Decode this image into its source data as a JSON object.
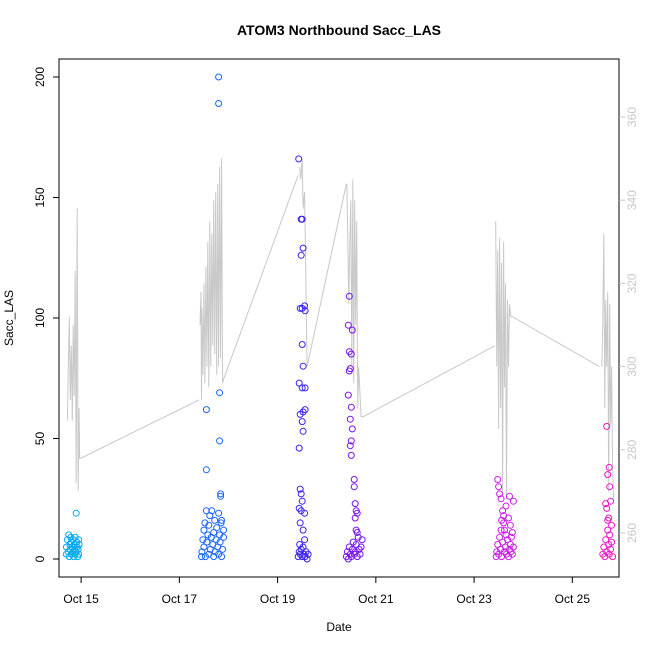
{
  "chart_data": {
    "type": "scatter",
    "title": "ATOM3 Northbound Sacc_LAS",
    "xlabel": "Date",
    "ylabel": "Sacc_LAS",
    "x_unit": "day of October",
    "xlim": [
      14.55,
      25.95
    ],
    "ylim": [
      -5,
      205
    ],
    "y2lim": [
      252,
      366
    ],
    "x_ticks": [
      {
        "value": 15,
        "label": "Oct 15"
      },
      {
        "value": 17,
        "label": "Oct 17"
      },
      {
        "value": 19,
        "label": "Oct 19"
      },
      {
        "value": 21,
        "label": "Oct 21"
      },
      {
        "value": 23,
        "label": "Oct 23"
      },
      {
        "value": 25,
        "label": "Oct 25"
      }
    ],
    "y_ticks": [
      0,
      50,
      100,
      150,
      200
    ],
    "y2_ticks": [
      260,
      280,
      300,
      320,
      340,
      360
    ],
    "grid": false,
    "legend": "none",
    "colors": {
      "line": "#c8c8c8",
      "axis": "#000000",
      "right_axis": "#c8c8c8",
      "group_colors": [
        "#00a8f0",
        "#1a66ff",
        "#3a22f2",
        "#7a14f0",
        "#c81ee6",
        "#f014c8"
      ]
    },
    "series": [
      {
        "color_index": 0,
        "points": [
          [
            14.7,
            2
          ],
          [
            14.7,
            5
          ],
          [
            14.72,
            8
          ],
          [
            14.74,
            3
          ],
          [
            14.75,
            10
          ],
          [
            14.76,
            1
          ],
          [
            14.77,
            6
          ],
          [
            14.78,
            4
          ],
          [
            14.79,
            9
          ],
          [
            14.8,
            2
          ],
          [
            14.8,
            7
          ],
          [
            14.82,
            5
          ],
          [
            14.83,
            3
          ],
          [
            14.84,
            8
          ],
          [
            14.85,
            1
          ],
          [
            14.86,
            6
          ],
          [
            14.87,
            4
          ],
          [
            14.88,
            2
          ],
          [
            14.88,
            9
          ],
          [
            14.9,
            3
          ],
          [
            14.9,
            19
          ],
          [
            14.91,
            7
          ],
          [
            14.92,
            5
          ],
          [
            14.93,
            1
          ],
          [
            14.94,
            4
          ],
          [
            14.95,
            2
          ],
          [
            14.95,
            8
          ],
          [
            14.96,
            6
          ]
        ]
      },
      {
        "color_index": 1,
        "points": [
          [
            17.45,
            1
          ],
          [
            17.46,
            3
          ],
          [
            17.48,
            8
          ],
          [
            17.5,
            12
          ],
          [
            17.5,
            5
          ],
          [
            17.52,
            15
          ],
          [
            17.53,
            1
          ],
          [
            17.55,
            20
          ],
          [
            17.56,
            7
          ],
          [
            17.58,
            10
          ],
          [
            17.6,
            2
          ],
          [
            17.6,
            14
          ],
          [
            17.62,
            18
          ],
          [
            17.63,
            4
          ],
          [
            17.65,
            9
          ],
          [
            17.66,
            20
          ],
          [
            17.68,
            6
          ],
          [
            17.7,
            11
          ],
          [
            17.7,
            1
          ],
          [
            17.72,
            16
          ],
          [
            17.73,
            3
          ],
          [
            17.75,
            8
          ],
          [
            17.76,
            13
          ],
          [
            17.78,
            5
          ],
          [
            17.8,
            19
          ],
          [
            17.8,
            2
          ],
          [
            17.82,
            10
          ],
          [
            17.83,
            7
          ],
          [
            17.85,
            15
          ],
          [
            17.86,
            1
          ],
          [
            17.88,
            4
          ],
          [
            17.9,
            12
          ],
          [
            17.9,
            9
          ],
          [
            17.55,
            37
          ],
          [
            17.55,
            62
          ],
          [
            17.8,
            200
          ],
          [
            17.8,
            189
          ],
          [
            17.82,
            69
          ],
          [
            17.82,
            49
          ],
          [
            17.84,
            26
          ],
          [
            17.84,
            27
          ],
          [
            17.86,
            16
          ]
        ]
      },
      {
        "color_index": 2,
        "points": [
          [
            19.42,
            1
          ],
          [
            19.44,
            3
          ],
          [
            19.45,
            6
          ],
          [
            19.46,
            2
          ],
          [
            19.48,
            4
          ],
          [
            19.5,
            1
          ],
          [
            19.52,
            5
          ],
          [
            19.54,
            2
          ],
          [
            19.55,
            8
          ],
          [
            19.56,
            1
          ],
          [
            19.58,
            3
          ],
          [
            19.6,
            0
          ],
          [
            19.62,
            2
          ],
          [
            19.43,
            166
          ],
          [
            19.48,
            141
          ],
          [
            19.5,
            141
          ],
          [
            19.48,
            126
          ],
          [
            19.52,
            129
          ],
          [
            19.5,
            104
          ],
          [
            19.46,
            104
          ],
          [
            19.55,
            105
          ],
          [
            19.56,
            103
          ],
          [
            19.5,
            89
          ],
          [
            19.52,
            80
          ],
          [
            19.44,
            73
          ],
          [
            19.5,
            71
          ],
          [
            19.56,
            71
          ],
          [
            19.56,
            62
          ],
          [
            19.52,
            61
          ],
          [
            19.46,
            60
          ],
          [
            19.5,
            57
          ],
          [
            19.52,
            53
          ],
          [
            19.44,
            46
          ],
          [
            19.46,
            29
          ],
          [
            19.48,
            27
          ],
          [
            19.5,
            24
          ],
          [
            19.44,
            21
          ],
          [
            19.48,
            20
          ],
          [
            19.46,
            15
          ],
          [
            19.52,
            12
          ],
          [
            19.55,
            19
          ]
        ]
      },
      {
        "color_index": 3,
        "points": [
          [
            20.4,
            1
          ],
          [
            20.42,
            3
          ],
          [
            20.44,
            0
          ],
          [
            20.46,
            5
          ],
          [
            20.48,
            2
          ],
          [
            20.5,
            1
          ],
          [
            20.52,
            4
          ],
          [
            20.54,
            7
          ],
          [
            20.56,
            2
          ],
          [
            20.58,
            3
          ],
          [
            20.6,
            6
          ],
          [
            20.62,
            1
          ],
          [
            20.64,
            9
          ],
          [
            20.66,
            4
          ],
          [
            20.68,
            2
          ],
          [
            20.7,
            5
          ],
          [
            20.72,
            8
          ],
          [
            20.46,
            109
          ],
          [
            20.44,
            97
          ],
          [
            20.52,
            95
          ],
          [
            20.46,
            86
          ],
          [
            20.5,
            85
          ],
          [
            20.48,
            79
          ],
          [
            20.46,
            78
          ],
          [
            20.44,
            68
          ],
          [
            20.5,
            63
          ],
          [
            20.48,
            58
          ],
          [
            20.52,
            54
          ],
          [
            20.5,
            49
          ],
          [
            20.48,
            47
          ],
          [
            20.5,
            43
          ],
          [
            20.56,
            33
          ],
          [
            20.56,
            30
          ],
          [
            20.58,
            23
          ],
          [
            20.6,
            20
          ],
          [
            20.62,
            19
          ],
          [
            20.58,
            17
          ],
          [
            20.6,
            12
          ],
          [
            20.62,
            11
          ]
        ]
      },
      {
        "color_index": 4,
        "points": [
          [
            23.45,
            1
          ],
          [
            23.46,
            3
          ],
          [
            23.48,
            6
          ],
          [
            23.5,
            2
          ],
          [
            23.52,
            9
          ],
          [
            23.54,
            4
          ],
          [
            23.55,
            12
          ],
          [
            23.56,
            1
          ],
          [
            23.58,
            7
          ],
          [
            23.6,
            15
          ],
          [
            23.62,
            3
          ],
          [
            23.64,
            5
          ],
          [
            23.65,
            10
          ],
          [
            23.66,
            2
          ],
          [
            23.68,
            8
          ],
          [
            23.7,
            1
          ],
          [
            23.72,
            4
          ],
          [
            23.74,
            6
          ],
          [
            23.75,
            3
          ],
          [
            23.76,
            9
          ],
          [
            23.78,
            2
          ],
          [
            23.8,
            5
          ],
          [
            23.48,
            33
          ],
          [
            23.5,
            30
          ],
          [
            23.52,
            27
          ],
          [
            23.55,
            25
          ],
          [
            23.58,
            20
          ],
          [
            23.6,
            18
          ],
          [
            23.65,
            22
          ],
          [
            23.7,
            17
          ],
          [
            23.72,
            26
          ],
          [
            23.74,
            14
          ],
          [
            23.8,
            24
          ],
          [
            23.62,
            12
          ],
          [
            23.56,
            16
          ],
          [
            23.78,
            11
          ]
        ]
      },
      {
        "color_index": 5,
        "points": [
          [
            25.62,
            2
          ],
          [
            25.64,
            5
          ],
          [
            25.66,
            1
          ],
          [
            25.68,
            8
          ],
          [
            25.7,
            3
          ],
          [
            25.72,
            12
          ],
          [
            25.74,
            6
          ],
          [
            25.75,
            2
          ],
          [
            25.76,
            10
          ],
          [
            25.78,
            4
          ],
          [
            25.8,
            7
          ],
          [
            25.82,
            1
          ],
          [
            25.7,
            55
          ],
          [
            25.75,
            38
          ],
          [
            25.72,
            35
          ],
          [
            25.68,
            23
          ],
          [
            25.76,
            30
          ],
          [
            25.78,
            24
          ],
          [
            25.7,
            21
          ],
          [
            25.74,
            17
          ],
          [
            25.8,
            14
          ],
          [
            25.72,
            16
          ]
        ]
      }
    ],
    "line_segments": [
      [
        [
          14.72,
          287
        ],
        [
          14.74,
          300
        ],
        [
          14.76,
          312
        ],
        [
          14.78,
          292
        ],
        [
          14.8,
          305
        ],
        [
          14.82,
          287
        ],
        [
          14.84,
          310
        ],
        [
          14.86,
          293
        ],
        [
          14.88,
          323
        ],
        [
          14.9,
          272
        ],
        [
          14.92,
          338
        ],
        [
          14.94,
          270
        ],
        [
          14.96,
          290
        ],
        [
          14.97,
          278
        ],
        [
          15.0,
          278
        ],
        [
          17.4,
          292
        ]
      ],
      [
        [
          17.42,
          310
        ],
        [
          17.44,
          318
        ],
        [
          17.45,
          292
        ],
        [
          17.46,
          314
        ],
        [
          17.48,
          298
        ],
        [
          17.5,
          320
        ],
        [
          17.52,
          296
        ],
        [
          17.54,
          324
        ],
        [
          17.56,
          300
        ],
        [
          17.58,
          330
        ],
        [
          17.6,
          295
        ],
        [
          17.62,
          335
        ],
        [
          17.64,
          300
        ],
        [
          17.66,
          332
        ],
        [
          17.68,
          305
        ],
        [
          17.7,
          340
        ],
        [
          17.72,
          303
        ],
        [
          17.74,
          342
        ],
        [
          17.76,
          298
        ],
        [
          17.78,
          344
        ],
        [
          17.8,
          300
        ],
        [
          17.82,
          348
        ],
        [
          17.84,
          302
        ],
        [
          17.86,
          350
        ],
        [
          17.88,
          296
        ],
        [
          17.9,
          297
        ],
        [
          19.42,
          346
        ]
      ],
      [
        [
          19.45,
          348
        ],
        [
          19.47,
          345
        ],
        [
          19.5,
          350
        ],
        [
          19.52,
          338
        ],
        [
          19.55,
          342
        ],
        [
          19.6,
          300
        ],
        [
          20.4,
          344
        ]
      ],
      [
        [
          20.41,
          344
        ],
        [
          20.43,
          330
        ],
        [
          20.45,
          315
        ],
        [
          20.47,
          330
        ],
        [
          20.49,
          340
        ],
        [
          20.51,
          300
        ],
        [
          20.53,
          345
        ],
        [
          20.55,
          296
        ],
        [
          20.57,
          340
        ],
        [
          20.59,
          310
        ],
        [
          20.61,
          335
        ],
        [
          20.63,
          290
        ],
        [
          20.65,
          300
        ],
        [
          20.7,
          288
        ],
        [
          20.75,
          288
        ],
        [
          23.42,
          305
        ]
      ],
      [
        [
          23.44,
          335
        ],
        [
          23.46,
          300
        ],
        [
          23.48,
          328
        ],
        [
          23.5,
          285
        ],
        [
          23.52,
          331
        ],
        [
          23.54,
          290
        ],
        [
          23.56,
          325
        ],
        [
          23.58,
          270
        ],
        [
          23.6,
          330
        ],
        [
          23.62,
          295
        ],
        [
          23.64,
          320
        ],
        [
          23.66,
          268
        ],
        [
          23.68,
          316
        ],
        [
          23.7,
          300
        ],
        [
          23.72,
          315
        ],
        [
          23.75,
          312
        ],
        [
          23.78,
          312
        ],
        [
          25.55,
          300
        ]
      ],
      [
        [
          25.6,
          300
        ],
        [
          25.62,
          310
        ],
        [
          25.64,
          332
        ],
        [
          25.66,
          290
        ],
        [
          25.68,
          316
        ],
        [
          25.7,
          300
        ],
        [
          25.72,
          318
        ],
        [
          25.74,
          270
        ],
        [
          25.76,
          315
        ],
        [
          25.78,
          286
        ],
        [
          25.8,
          300
        ],
        [
          25.82,
          276
        ],
        [
          25.84,
          268
        ]
      ]
    ]
  }
}
